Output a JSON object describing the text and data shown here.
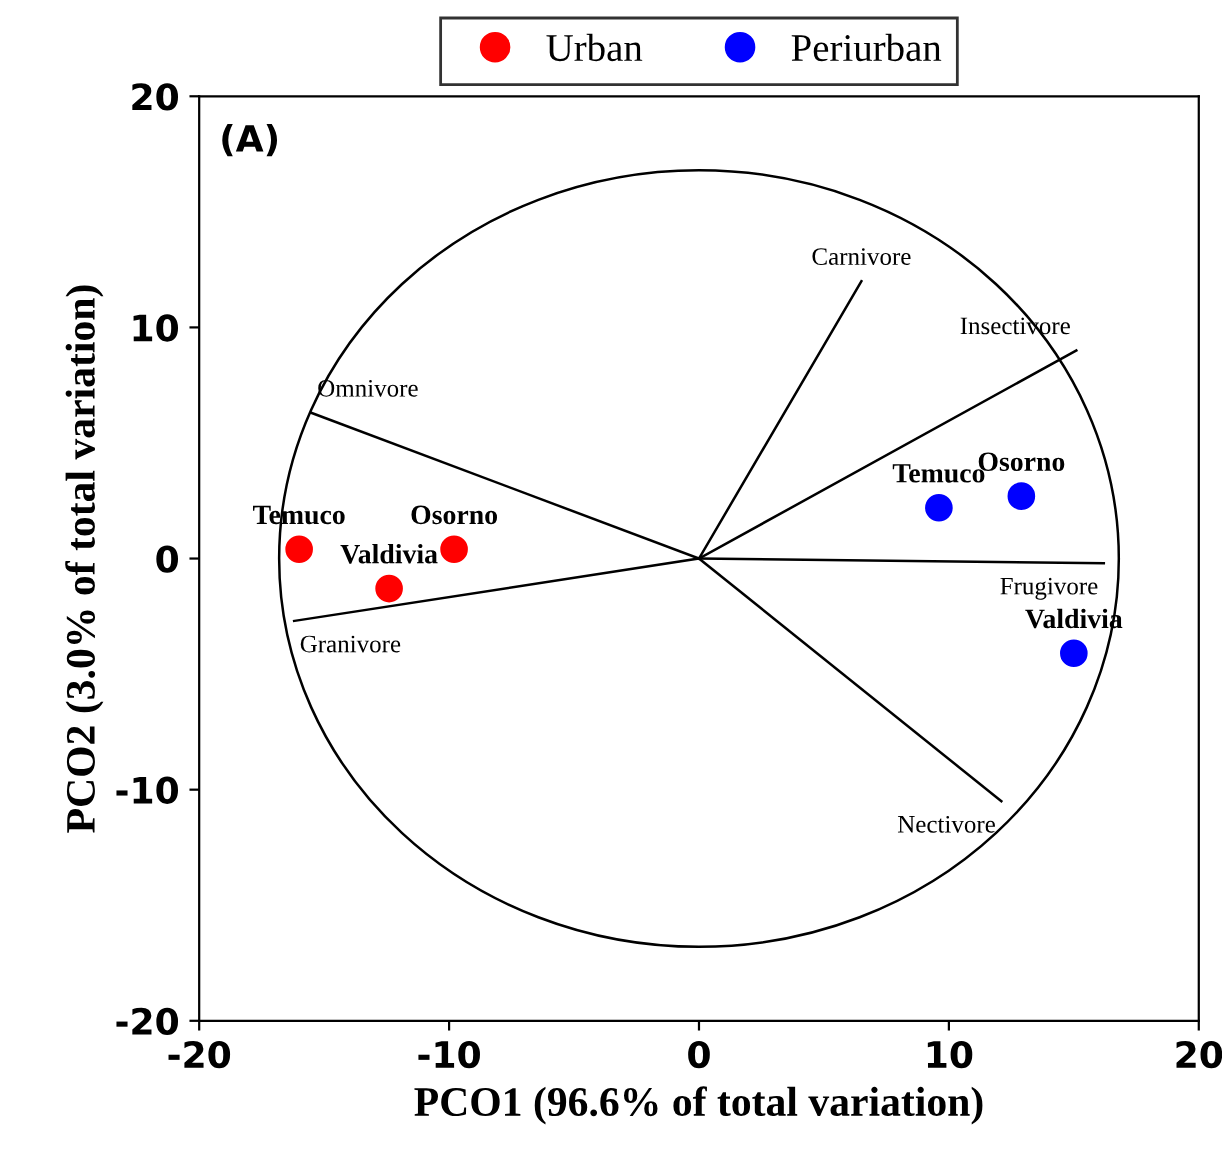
{
  "chart_data": {
    "type": "scatter",
    "xlabel": "PCO1 (96.6% of total variation)",
    "ylabel": "PCO2 (3.0% of total variation)",
    "xlim": [
      -20,
      20
    ],
    "ylim": [
      -20,
      20
    ],
    "xticks": [
      -20,
      -10,
      0,
      10,
      20
    ],
    "yticks": [
      -20,
      -10,
      0,
      10,
      20
    ],
    "grid": false,
    "legend": "top",
    "series": [
      {
        "name": "Urban",
        "marker": "circle",
        "color": "#ff0000",
        "x": [
          -16.0,
          -12.4,
          -9.8
        ],
        "values": [
          0.4,
          -1.3,
          0.4
        ]
      },
      {
        "name": "Periurban",
        "marker": "circle",
        "color": "#0000ff",
        "x": [
          9.6,
          12.9,
          15.0
        ],
        "values": [
          2.2,
          2.7,
          -4.1
        ]
      },
      {
        "type": "line",
        "name": "Carnivore",
        "color": "#000000",
        "x": [
          0,
          6.5
        ],
        "values": [
          0,
          12.0
        ]
      },
      {
        "type": "line",
        "name": "Insectivore",
        "color": "#000000",
        "x": [
          0,
          15.1
        ],
        "values": [
          0,
          9.0
        ]
      },
      {
        "type": "line",
        "name": "Frugivore",
        "color": "#000000",
        "x": [
          0,
          16.2
        ],
        "values": [
          0,
          -0.2
        ]
      },
      {
        "type": "line",
        "name": "Nectivore",
        "color": "#000000",
        "x": [
          0,
          12.1
        ],
        "values": [
          0,
          -10.5
        ]
      },
      {
        "type": "line",
        "name": "Granivore",
        "color": "#000000",
        "x": [
          0,
          -16.2
        ],
        "values": [
          0,
          -2.7
        ]
      },
      {
        "type": "line",
        "name": "Omnivore",
        "color": "#000000",
        "x": [
          0,
          -15.5
        ],
        "values": [
          0,
          6.3
        ]
      }
    ],
    "annotations": [
      "(A)",
      {
        "text": "Temuco",
        "x": -16.0,
        "y": 0.4
      },
      {
        "text": "Valdivia",
        "x": -12.4,
        "y": -1.3
      },
      {
        "text": "Osorno",
        "x": -9.8,
        "y": 0.4
      },
      {
        "text": "Temuco",
        "x": 9.6,
        "y": 2.2
      },
      {
        "text": "Osorno",
        "x": 12.9,
        "y": 2.7
      },
      {
        "text": "Valdivia",
        "x": 15.0,
        "y": -4.1
      }
    ]
  }
}
